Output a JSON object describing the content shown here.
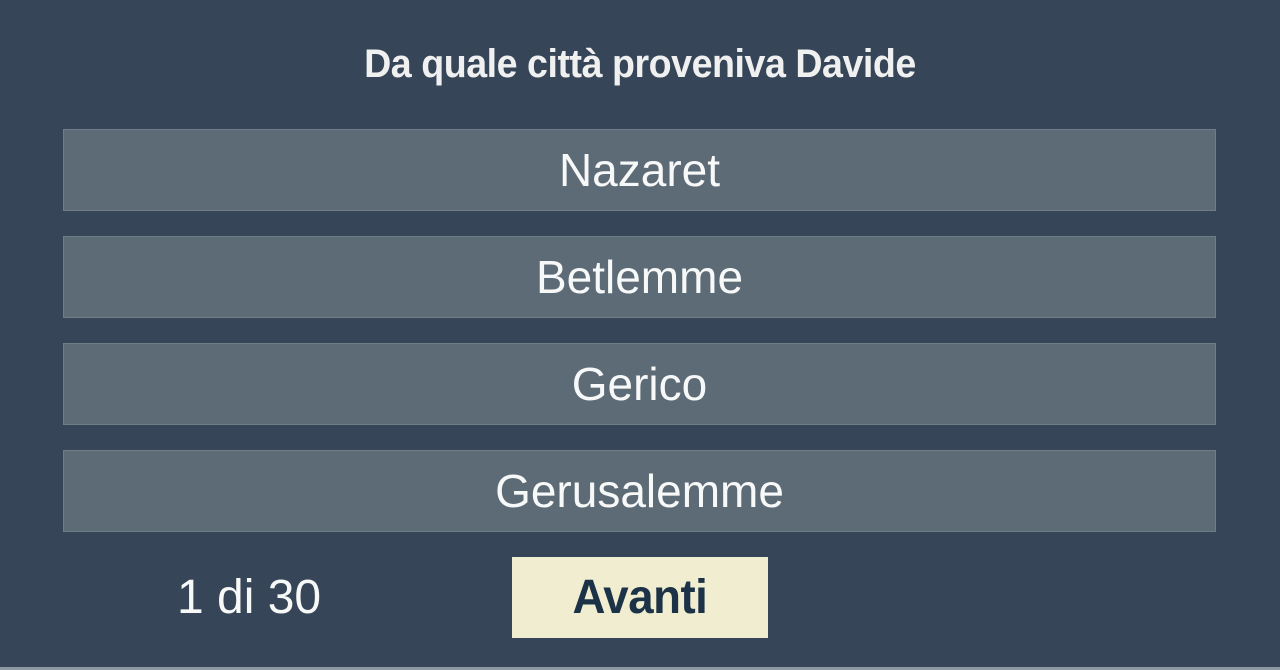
{
  "question": {
    "text": "Da quale città proveniva Davide"
  },
  "answers": [
    {
      "label": "Nazaret"
    },
    {
      "label": "Betlemme"
    },
    {
      "label": "Gerico"
    },
    {
      "label": "Gerusalemme"
    }
  ],
  "footer": {
    "progress": "1 di 30",
    "next_label": "Avanti"
  },
  "colors": {
    "background": "#364658",
    "answer_background": "#5D6B77",
    "answer_text": "#F7F8F8",
    "title_text": "#F0F0F0",
    "next_background": "#F1EDD1",
    "next_text": "#1C3247",
    "bottom_strip": "#8D98A2"
  }
}
